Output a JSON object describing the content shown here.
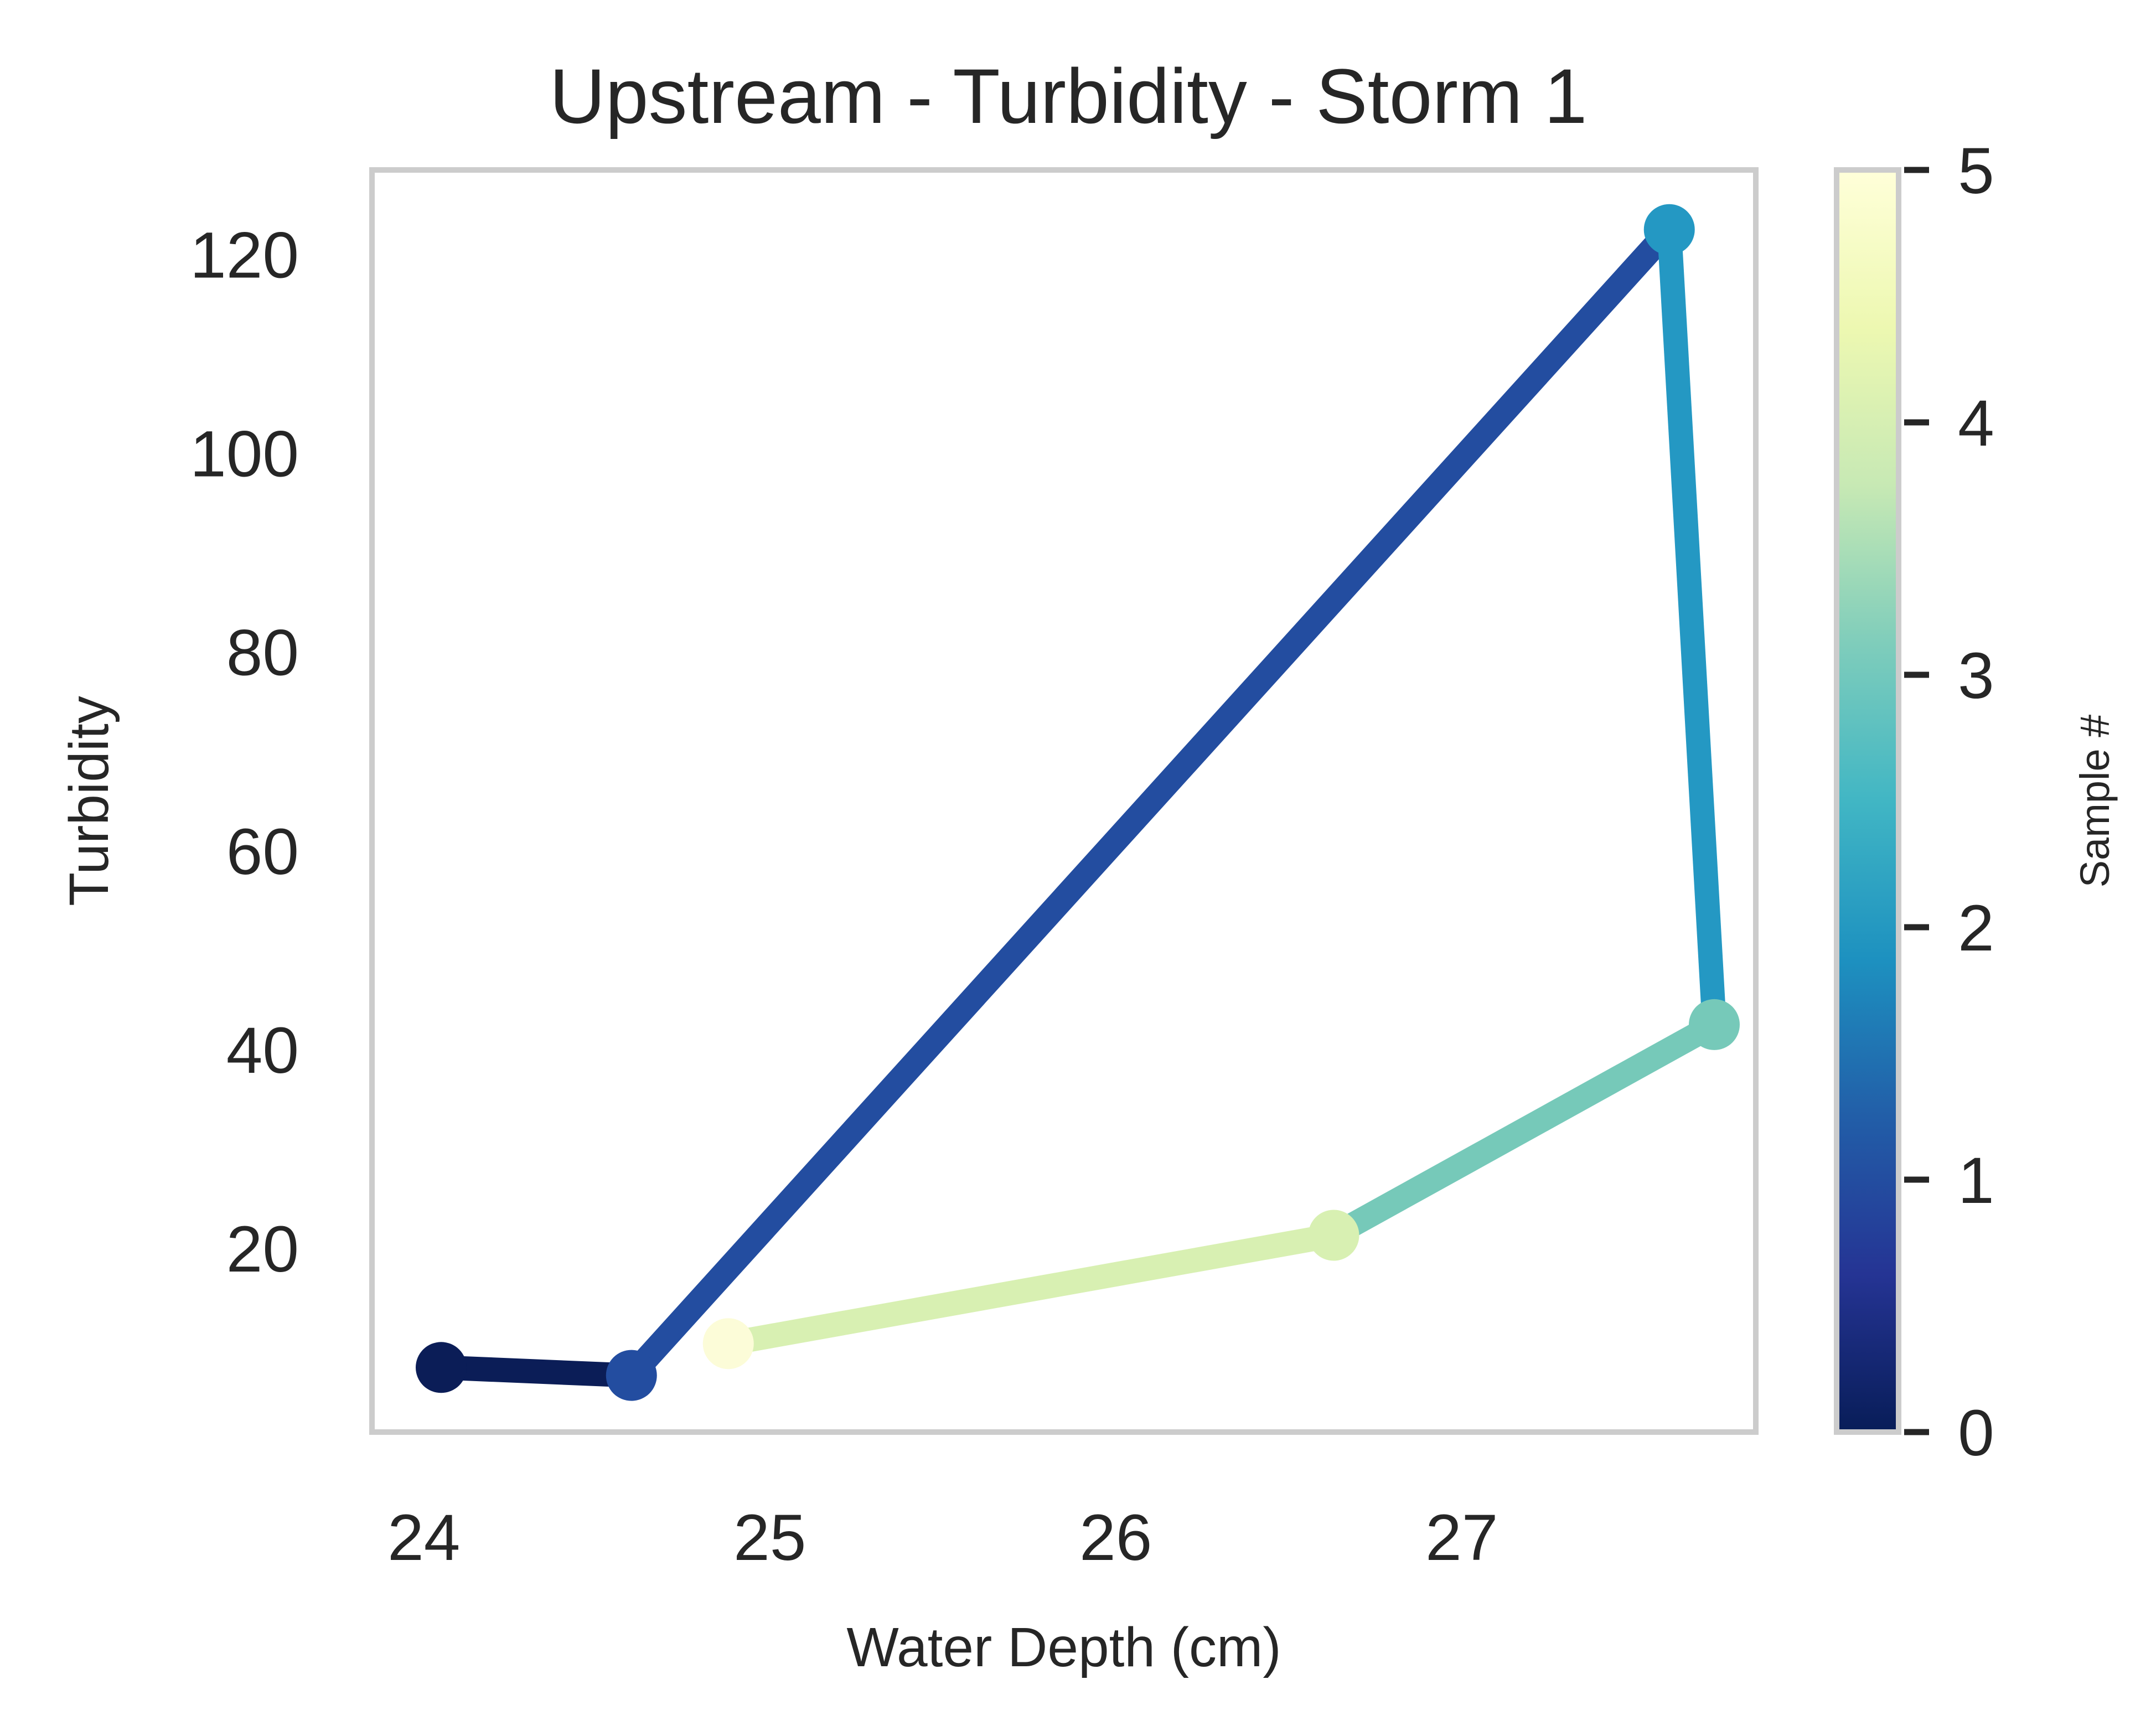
{
  "chart_data": {
    "type": "line",
    "title": "Upstream - Turbidity - Storm 1",
    "xlabel": "Water Depth (cm)",
    "ylabel": "Turbidity",
    "xlim": [
      23.85,
      27.85
    ],
    "ylim": [
      1.5,
      128.5
    ],
    "x_ticks": [
      24,
      25,
      26,
      27
    ],
    "y_ticks": [
      20,
      40,
      60,
      80,
      100,
      120
    ],
    "grid": false,
    "colormap": "YlGnBu_r",
    "colorbar": {
      "label": "Sample #",
      "range": [
        0,
        5
      ],
      "ticks": [
        0,
        1,
        2,
        3,
        4,
        5
      ],
      "colors": [
        "#081d58",
        "#253494",
        "#225ea8",
        "#1d91c0",
        "#41b6c4",
        "#7fcdbb",
        "#c7e9b4",
        "#edf8b1",
        "#ffffd9"
      ]
    },
    "series": [
      {
        "samples": [
          0,
          1,
          2,
          3,
          4,
          5
        ],
        "x": [
          24.05,
          24.6,
          27.6,
          27.73,
          26.63,
          24.88
        ],
        "y": [
          8.0,
          7.2,
          122.5,
          42.5,
          21.3,
          10.4
        ],
        "segment_colors": [
          "#0b1d57",
          "#234da0",
          "#2498c3",
          "#76c9b9",
          "#d8f0b2"
        ],
        "point_colors": [
          "#0b1d57",
          "#234da0",
          "#2498c3",
          "#76c9b9",
          "#d8f0b2",
          "#fcfcd8"
        ]
      }
    ]
  }
}
